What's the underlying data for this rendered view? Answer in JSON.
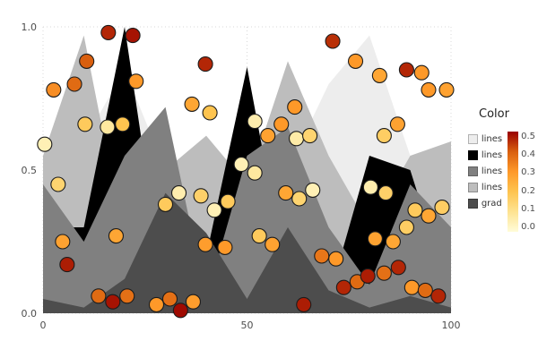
{
  "chart_data": {
    "type": "scatter",
    "title": "",
    "xlabel": "",
    "ylabel": "",
    "xlim": [
      0,
      100
    ],
    "ylim": [
      0,
      1
    ],
    "xticks": [
      "0",
      "50",
      "100"
    ],
    "yticks": [
      "0.0",
      "0.5",
      "1.0"
    ],
    "grid": true,
    "legend": {
      "title": "Color",
      "entries": [
        {
          "label": "lines",
          "color": "#ededed"
        },
        {
          "label": "lines",
          "color": "#000000"
        },
        {
          "label": "lines",
          "color": "#808080"
        },
        {
          "label": "lines",
          "color": "#bdbdbd"
        },
        {
          "label": "grad",
          "color": "#4d4d4d"
        }
      ],
      "colorbar": {
        "min": 0,
        "max": 0.5,
        "ticks": [
          "0.5",
          "0.4",
          "0.3",
          "0.2",
          "0.1",
          "0.0"
        ]
      }
    },
    "colormap_stops": [
      [
        0.0,
        "#fffcd9"
      ],
      [
        0.1,
        "#fee391"
      ],
      [
        0.2,
        "#fec44f"
      ],
      [
        0.3,
        "#fe9929"
      ],
      [
        0.4,
        "#d95f0e"
      ],
      [
        0.5,
        "#990000"
      ]
    ],
    "area_x": [
      0,
      10,
      20,
      30,
      40,
      50,
      60,
      70,
      80,
      90,
      100
    ],
    "areas": [
      {
        "name": "lines-lightest",
        "color": "#ededed",
        "y": [
          0.5,
          0.6,
          0.85,
          0.5,
          0.3,
          0.6,
          0.5,
          0.8,
          0.97,
          0.55,
          0.2
        ]
      },
      {
        "name": "lines-silver",
        "color": "#bdbdbd",
        "y": [
          0.55,
          0.97,
          0.25,
          0.5,
          0.62,
          0.45,
          0.88,
          0.55,
          0.3,
          0.55,
          0.6
        ]
      },
      {
        "name": "lines-black",
        "color": "#000000",
        "y": [
          0.3,
          0.3,
          1.0,
          0.05,
          0.2,
          0.86,
          0.1,
          0.05,
          0.55,
          0.5,
          0.05
        ]
      },
      {
        "name": "lines-gray",
        "color": "#808080",
        "y": [
          0.45,
          0.25,
          0.55,
          0.72,
          0.05,
          0.55,
          0.65,
          0.3,
          0.1,
          0.45,
          0.3
        ]
      },
      {
        "name": "grad",
        "color": "#4d4d4d",
        "y": [
          0.05,
          0.02,
          0.12,
          0.42,
          0.28,
          0.05,
          0.3,
          0.08,
          0.02,
          0.06,
          0.02
        ]
      }
    ],
    "points": [
      [
        16,
        0.98,
        0.46
      ],
      [
        22,
        0.97,
        0.48
      ],
      [
        71,
        0.95,
        0.45
      ],
      [
        10.7,
        0.88,
        0.4
      ],
      [
        39.8,
        0.87,
        0.46
      ],
      [
        22.8,
        0.81,
        0.3
      ],
      [
        76.6,
        0.88,
        0.3
      ],
      [
        82.5,
        0.83,
        0.27
      ],
      [
        89.1,
        0.85,
        0.46
      ],
      [
        92.8,
        0.84,
        0.3
      ],
      [
        2.6,
        0.78,
        0.32
      ],
      [
        7.7,
        0.8,
        0.38
      ],
      [
        94.5,
        0.78,
        0.3
      ],
      [
        98.9,
        0.78,
        0.28
      ],
      [
        36.5,
        0.73,
        0.27
      ],
      [
        40.9,
        0.7,
        0.2
      ],
      [
        61.7,
        0.72,
        0.3
      ],
      [
        10.3,
        0.66,
        0.18
      ],
      [
        15.8,
        0.65,
        0.08
      ],
      [
        19.5,
        0.66,
        0.2
      ],
      [
        0.4,
        0.59,
        0.05
      ],
      [
        51.9,
        0.67,
        0.06
      ],
      [
        55.1,
        0.62,
        0.28
      ],
      [
        58.4,
        0.66,
        0.3
      ],
      [
        62.1,
        0.61,
        0.07
      ],
      [
        65.4,
        0.62,
        0.15
      ],
      [
        83.6,
        0.62,
        0.17
      ],
      [
        86.9,
        0.66,
        0.28
      ],
      [
        3.7,
        0.45,
        0.15
      ],
      [
        30,
        0.38,
        0.18
      ],
      [
        33.3,
        0.42,
        0.06
      ],
      [
        38.7,
        0.41,
        0.16
      ],
      [
        42,
        0.36,
        0.05
      ],
      [
        45.3,
        0.39,
        0.18
      ],
      [
        48.6,
        0.52,
        0.05
      ],
      [
        51.9,
        0.49,
        0.08
      ],
      [
        59.5,
        0.42,
        0.27
      ],
      [
        62.8,
        0.4,
        0.15
      ],
      [
        66.1,
        0.43,
        0.05
      ],
      [
        80.3,
        0.44,
        0.06
      ],
      [
        84,
        0.42,
        0.16
      ],
      [
        91.2,
        0.36,
        0.18
      ],
      [
        94.5,
        0.34,
        0.27
      ],
      [
        97.8,
        0.37,
        0.17
      ],
      [
        4.8,
        0.25,
        0.28
      ],
      [
        17.9,
        0.27,
        0.27
      ],
      [
        39.8,
        0.24,
        0.29
      ],
      [
        44.6,
        0.23,
        0.3
      ],
      [
        53,
        0.27,
        0.18
      ],
      [
        56.2,
        0.24,
        0.28
      ],
      [
        68.3,
        0.2,
        0.36
      ],
      [
        71.8,
        0.19,
        0.3
      ],
      [
        81.4,
        0.26,
        0.28
      ],
      [
        85.8,
        0.25,
        0.27
      ],
      [
        89.1,
        0.3,
        0.17
      ],
      [
        5.9,
        0.17,
        0.47
      ],
      [
        13.6,
        0.06,
        0.38
      ],
      [
        17.1,
        0.04,
        0.48
      ],
      [
        20.6,
        0.06,
        0.37
      ],
      [
        27.8,
        0.03,
        0.3
      ],
      [
        31.1,
        0.05,
        0.37
      ],
      [
        33.7,
        0.01,
        0.49
      ],
      [
        36.8,
        0.04,
        0.29
      ],
      [
        63.9,
        0.03,
        0.47
      ],
      [
        73.7,
        0.09,
        0.46
      ],
      [
        77,
        0.11,
        0.38
      ],
      [
        79.6,
        0.13,
        0.47
      ],
      [
        83.6,
        0.14,
        0.37
      ],
      [
        87.1,
        0.16,
        0.46
      ],
      [
        90.4,
        0.09,
        0.3
      ],
      [
        93.7,
        0.08,
        0.38
      ],
      [
        96.9,
        0.06,
        0.46
      ]
    ]
  }
}
